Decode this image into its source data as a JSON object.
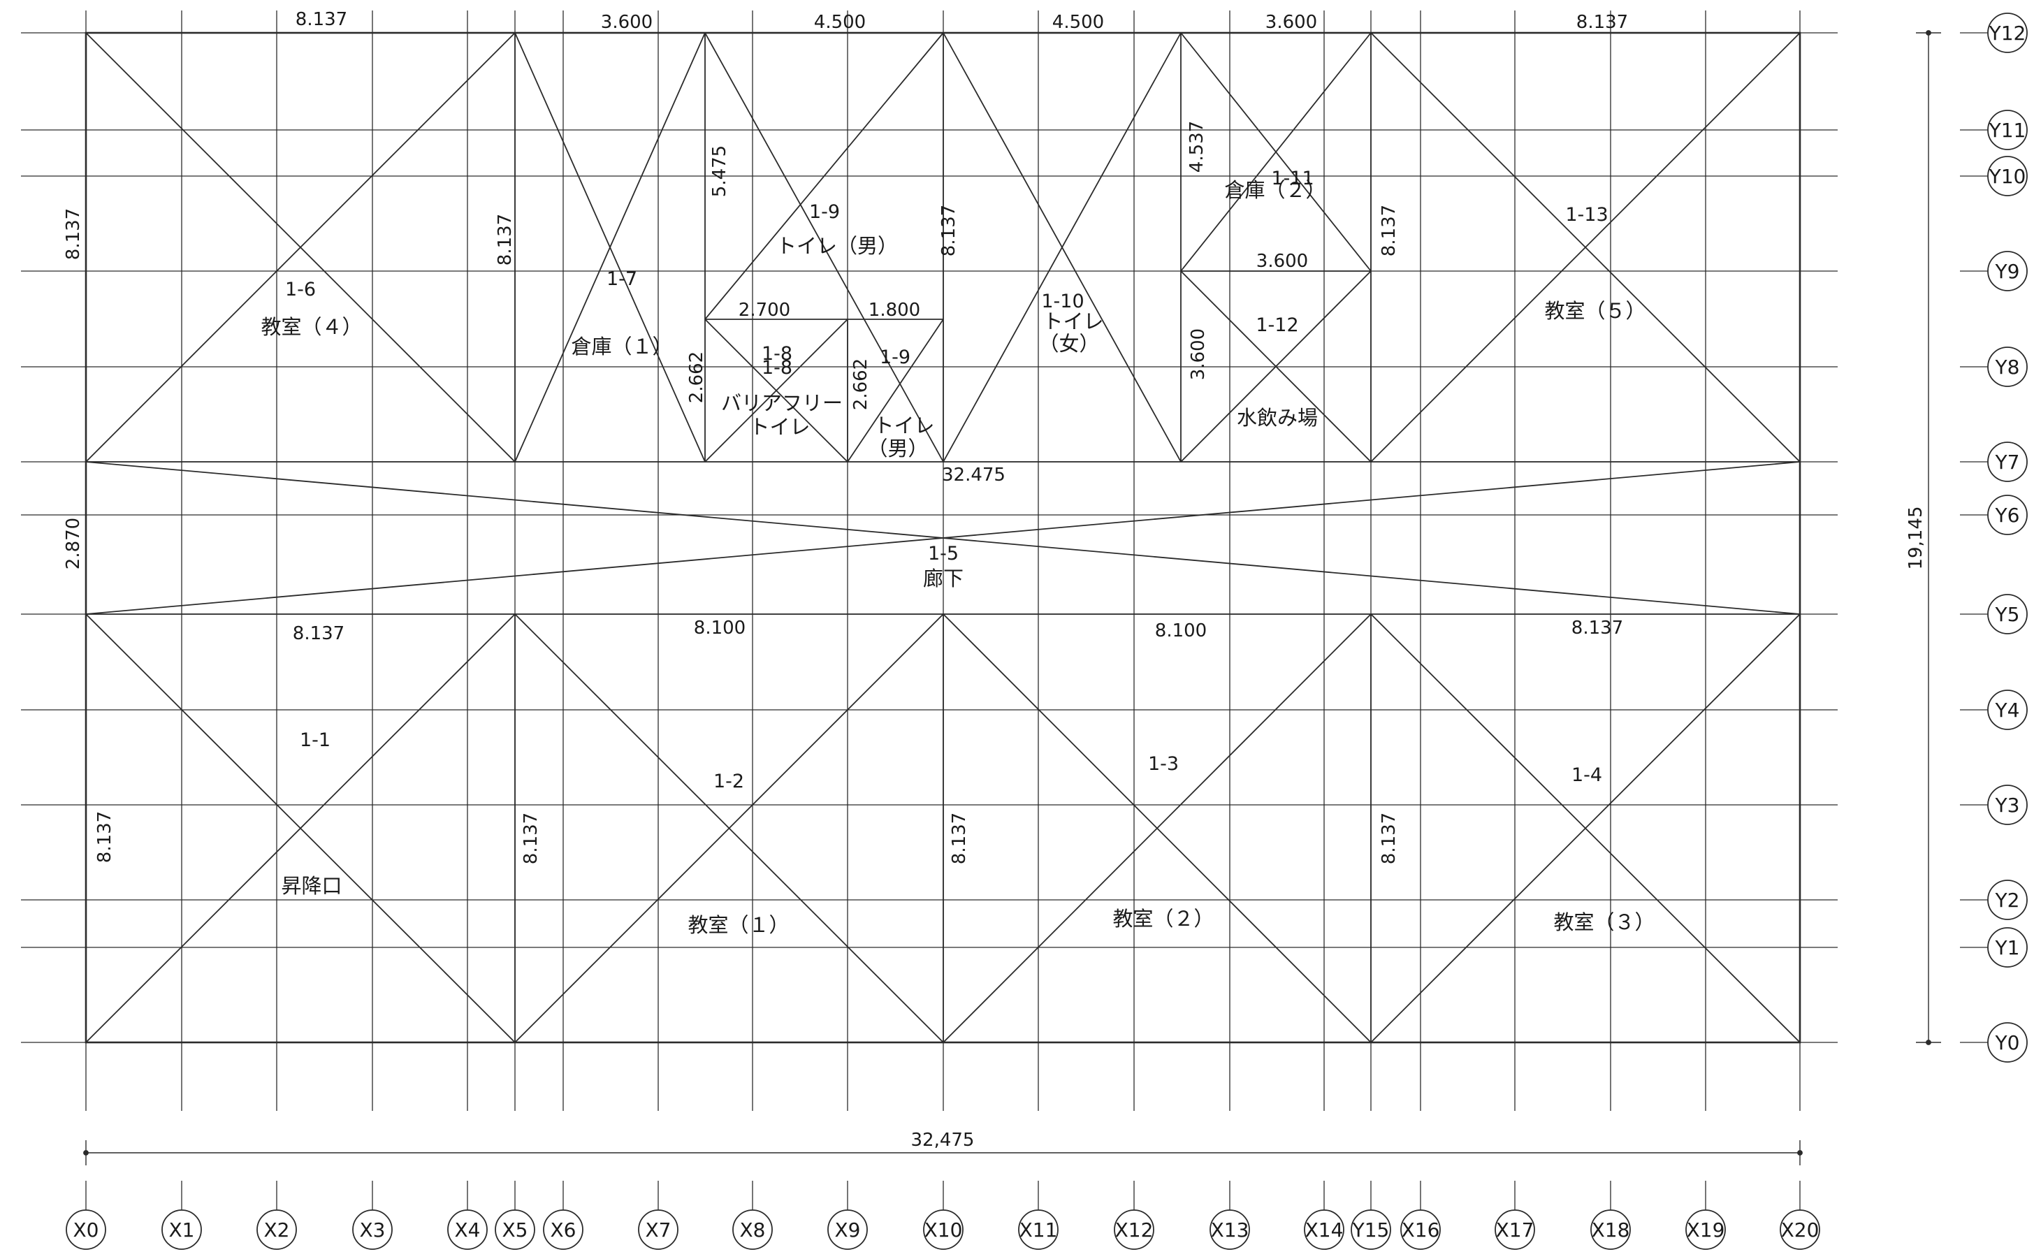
{
  "grid": {
    "x_labels": [
      "X0",
      "X1",
      "X2",
      "X3",
      "X4",
      "X5",
      "X6",
      "X7",
      "X8",
      "X9",
      "X10",
      "X11",
      "X12",
      "X13",
      "X14",
      "Y15",
      "X16",
      "X17",
      "X18",
      "X19",
      "X20"
    ],
    "y_labels": [
      "Y0",
      "Y1",
      "Y2",
      "Y3",
      "Y4",
      "Y5",
      "Y6",
      "Y7",
      "Y8",
      "Y9",
      "Y10",
      "Y11",
      "Y12"
    ]
  },
  "overall": {
    "width_label": "32,475",
    "height_label": "19,145"
  },
  "corridor_width_label": "32.475",
  "dimensions": {
    "top_bay_1": "8.137",
    "top_bay_2": "3.600",
    "top_bay_3": "4.500",
    "top_bay_4": "4.500",
    "top_bay_5": "3.600",
    "top_bay_6": "8.137",
    "left_top_height": "8.137",
    "left_corridor_height": "2.870",
    "left_bottom_height": "8.137",
    "col_x5_top": "8.137",
    "col_x10_top": "8.137",
    "col_y15_top": "8.137",
    "col_x5_bottom": "8.137",
    "col_x10_bottom": "8.137",
    "col_y15_bottom": "8.137",
    "x7_height": "5.475",
    "x13_height": "4.537",
    "x13_lower_height": "3.600",
    "x7_lower_height": "2.662",
    "x9_lower_height": "2.662",
    "mid_width_1": "2.700",
    "mid_width_2": "1.800",
    "store2_width": "3.600",
    "bottom_bay_1": "8.137",
    "bottom_bay_2": "8.100",
    "bottom_bay_3": "8.100",
    "bottom_bay_4": "8.137"
  },
  "panels": {
    "p1_1": "1-1",
    "p1_2": "1-2",
    "p1_3": "1-3",
    "p1_4": "1-4",
    "p1_5": "1-5",
    "p1_6": "1-6",
    "p1_7": "1-7",
    "p1_8a": "1-8",
    "p1_8b": "1-8",
    "p1_9a": "1-9",
    "p1_9b": "1-9",
    "p1_10": "1-10",
    "p1_11": "1-11",
    "p1_12": "1-12",
    "p1_13": "1-13"
  },
  "rooms": {
    "classroom_1": "教室（１）",
    "classroom_2": "教室（２）",
    "classroom_3": "教室（３）",
    "classroom_4": "教室（４）",
    "classroom_5": "教室（５）",
    "entrance": "昇降口",
    "corridor": "廊下",
    "storage_1": "倉庫（１）",
    "storage_2": "倉庫（２）",
    "toilet_men_upper": "トイレ（男）",
    "toilet_women_line1": "トイレ",
    "toilet_women_line2": "（女）",
    "accessible_toilet_line1": "バリアフリー",
    "accessible_toilet_line2": "トイレ",
    "toilet_men_lower_line1": "トイレ",
    "toilet_men_lower_line2": "（男）",
    "drinking_fountain": "水飲み場"
  }
}
